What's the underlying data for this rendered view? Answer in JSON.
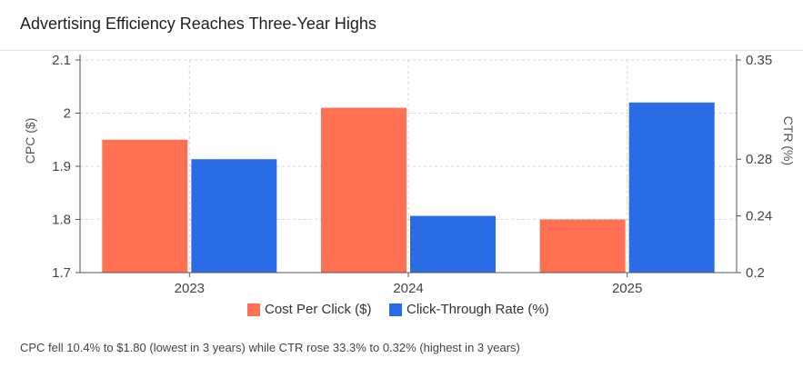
{
  "header": {
    "title": "Advertising Efficiency Reaches Three-Year Highs"
  },
  "footnote": "CPC fell 10.4% to $1.80 (lowest in 3 years) while CTR rose 33.3% to 0.32% (highest in 3 years)",
  "colors": {
    "cpc": "#ff7152",
    "ctr": "#2a6be6",
    "grid": "#d4d4d4",
    "axis": "#555555"
  },
  "chart_data": {
    "type": "bar",
    "categories": [
      "2023",
      "2024",
      "2025"
    ],
    "series": [
      {
        "name": "Cost Per Click ($)",
        "axis": "left",
        "values": [
          1.95,
          2.01,
          1.8
        ]
      },
      {
        "name": "Click-Through Rate (%)",
        "axis": "right",
        "values": [
          0.28,
          0.24,
          0.32
        ]
      }
    ],
    "ylabel": "CPC ($)",
    "y2label": "CTR (%)",
    "ylim": [
      1.7,
      2.1
    ],
    "y2lim": [
      0.2,
      0.35
    ],
    "yticks": [
      "1.7",
      "1.8",
      "1.9",
      "2",
      "2.1"
    ],
    "y2ticks": [
      "0.2",
      "0.24",
      "0.28",
      "0.35"
    ],
    "grid": true,
    "legend_position": "bottom"
  }
}
